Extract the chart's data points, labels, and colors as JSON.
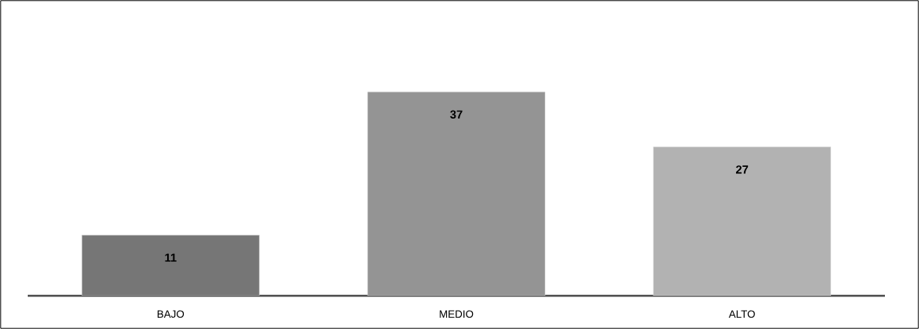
{
  "chart_data": {
    "type": "bar",
    "categories": [
      "BAJO",
      "MEDIO",
      "ALTO"
    ],
    "values": [
      11,
      37,
      27
    ],
    "colors": [
      "#767676",
      "#949494",
      "#b2b2b2"
    ],
    "data_labels": true
  }
}
